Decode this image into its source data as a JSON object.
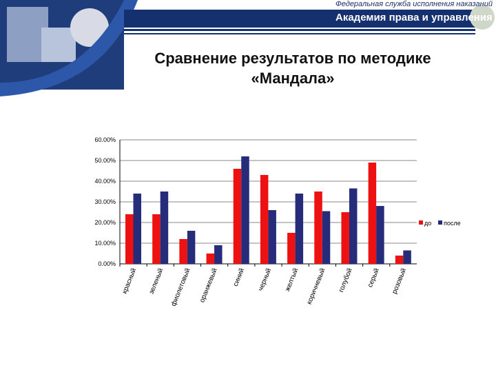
{
  "header": {
    "org_line1": "Федеральная служба исполнения наказаний",
    "org_line2": "Академия права и управления"
  },
  "slide": {
    "title_line1": "Сравнение результатов по методике",
    "title_line2": "«Мандала»"
  },
  "colors": {
    "do": "#ee1111",
    "posle": "#262b7a",
    "header_blue": "#14306e"
  },
  "chart_data": {
    "type": "bar",
    "categories": [
      "красный",
      "зеленый",
      "фиолетовый",
      "оранжевый",
      "синий",
      "черный",
      "желтый",
      "коричневый",
      "голубой",
      "серый",
      "розовый"
    ],
    "series": [
      {
        "name": "до",
        "values": [
          24,
          24,
          12,
          5,
          46,
          43,
          15,
          35,
          25,
          49,
          4
        ]
      },
      {
        "name": "после",
        "values": [
          34,
          35,
          16,
          9,
          52,
          26,
          34,
          25.5,
          36.5,
          28,
          6.5
        ]
      }
    ],
    "yticks": [
      "0.00%",
      "10.00%",
      "20.00%",
      "30.00%",
      "40.00%",
      "50.00%",
      "60.00%"
    ],
    "ylim": [
      0,
      60
    ],
    "yunit": "%",
    "grid": true,
    "legend": "right"
  }
}
